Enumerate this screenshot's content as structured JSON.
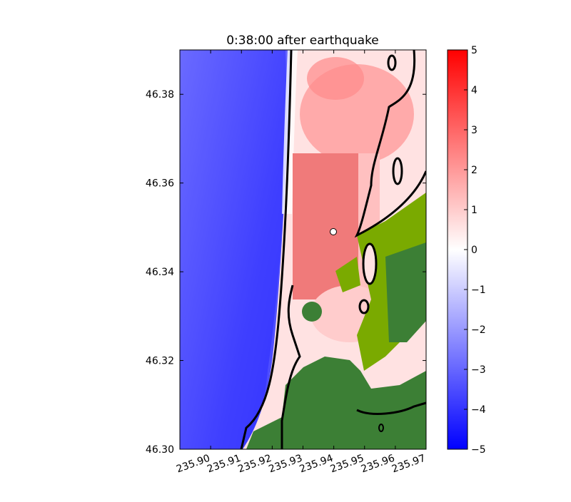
{
  "chart_data": {
    "type": "heatmap",
    "title": "0:38:00 after earthquake",
    "xlim": [
      235.89,
      235.97
    ],
    "ylim": [
      46.3,
      46.39
    ],
    "xticks": [
      {
        "value": 235.9,
        "label": "235.90"
      },
      235.91,
      235.92,
      235.93,
      235.94,
      235.95,
      235.96,
      235.97
    ],
    "yticks": [
      {
        "value": 46.3,
        "label": "46.30"
      },
      46.32,
      46.34,
      46.36,
      46.38
    ],
    "colorbar": {
      "clim": [
        -5,
        5
      ],
      "colors": [
        "#0000ff",
        "#ffffff",
        "#ff0000"
      ],
      "ticks": [
        {
          "value": -5,
          "label": "−5"
        },
        {
          "value": -4,
          "label": "−4"
        },
        {
          "value": -3,
          "label": "−3"
        },
        {
          "value": -2,
          "label": "−2"
        },
        {
          "value": -1,
          "label": "−1"
        },
        0,
        1,
        2,
        3,
        4,
        5
      ]
    }
  }
}
